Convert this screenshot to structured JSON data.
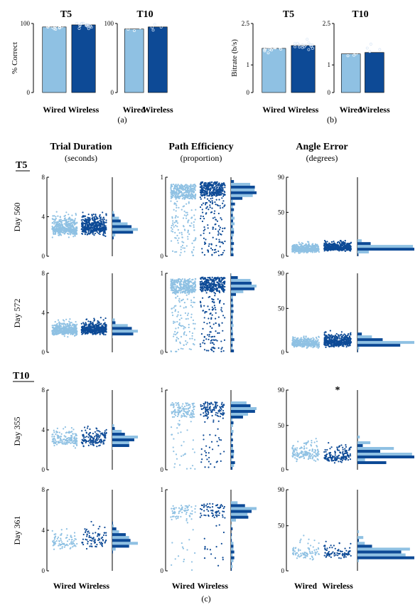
{
  "colors": {
    "wired": "#8fc1e3",
    "wireless": "#0d4a96",
    "axis": "#000000"
  },
  "panel_labels": {
    "a": "(a)",
    "b": "(b)",
    "c": "(c)"
  },
  "column_headers": [
    {
      "title": "Trial Duration",
      "unit": "(seconds)"
    },
    {
      "title": "Path Efficiency",
      "unit": "(proportion)"
    },
    {
      "title": "Angle Error",
      "unit": "(degrees)"
    }
  ],
  "participant_labels": {
    "t5": "T5",
    "t10": "T10"
  },
  "row_labels": [
    "Day 560",
    "Day 572",
    "Day 355",
    "Day 361"
  ],
  "significance_marker": "*",
  "chart_data": [
    {
      "type": "bar",
      "panel": "a",
      "title": "T5",
      "categories": [
        "Wired",
        "Wireless"
      ],
      "values": [
        95,
        98
      ],
      "ylabel": "% Correct",
      "ylim": [
        0,
        100
      ],
      "yticks": [
        0,
        100
      ]
    },
    {
      "type": "bar",
      "panel": "a",
      "title": "T10",
      "categories": [
        "Wired",
        "Wireless"
      ],
      "values": [
        92,
        95
      ],
      "ylim": [
        0,
        100
      ],
      "yticks": [
        0,
        100
      ]
    },
    {
      "type": "bar",
      "panel": "b",
      "title": "T5",
      "categories": [
        "Wired",
        "Wireless"
      ],
      "values": [
        1.6,
        1.7
      ],
      "ylabel": "Bitrate (b/s)",
      "ylim": [
        0,
        2.5
      ],
      "yticks": [
        0,
        1.0,
        2.5
      ]
    },
    {
      "type": "bar",
      "panel": "b",
      "title": "T10",
      "categories": [
        "Wired",
        "Wireless"
      ],
      "values": [
        1.4,
        1.45
      ],
      "ylim": [
        0,
        2.5
      ],
      "yticks": [
        0,
        1.0,
        2.5
      ]
    },
    {
      "type": "scatter",
      "panel": "c",
      "categories": [
        "Wired",
        "Wireless"
      ],
      "metrics": [
        {
          "ylim": [
            0,
            8
          ],
          "yticks": [
            0,
            4,
            8
          ]
        },
        {
          "ylim": [
            0,
            1
          ],
          "yticks": [
            0,
            1
          ]
        },
        {
          "ylim": [
            0,
            90
          ],
          "yticks": [
            0,
            50,
            90
          ]
        }
      ],
      "rows": [
        {
          "day": "Day 560",
          "participant": "T5",
          "medians": [
            [
              2.8,
              2.9
            ],
            [
              0.82,
              0.85
            ],
            [
              8,
              10
            ]
          ],
          "spreads": [
            [
              1.2,
              1.1
            ],
            [
              0.25,
              0.25
            ],
            [
              5,
              6
            ]
          ],
          "n": 420
        },
        {
          "day": "Day 572",
          "participant": "T5",
          "medians": [
            [
              2.2,
              2.3
            ],
            [
              0.84,
              0.86
            ],
            [
              10,
              12
            ]
          ],
          "spreads": [
            [
              0.7,
              0.7
            ],
            [
              0.25,
              0.25
            ],
            [
              6,
              8
            ]
          ],
          "n": 420
        },
        {
          "day": "Day 355",
          "participant": "T10",
          "medians": [
            [
              3.0,
              3.0
            ],
            [
              0.75,
              0.76
            ],
            [
              18,
              15
            ]
          ],
          "spreads": [
            [
              1.0,
              1.0
            ],
            [
              0.2,
              0.2
            ],
            [
              12,
              10
            ]
          ],
          "n": 150
        },
        {
          "day": "Day 361",
          "participant": "T10",
          "medians": [
            [
              2.7,
              3.1
            ],
            [
              0.72,
              0.74
            ],
            [
              20,
              20
            ]
          ],
          "spreads": [
            [
              0.9,
              1.2
            ],
            [
              0.25,
              0.25
            ],
            [
              12,
              10
            ]
          ],
          "n": 80
        }
      ],
      "significant": [
        {
          "row": 2,
          "metric": 2
        }
      ]
    }
  ]
}
